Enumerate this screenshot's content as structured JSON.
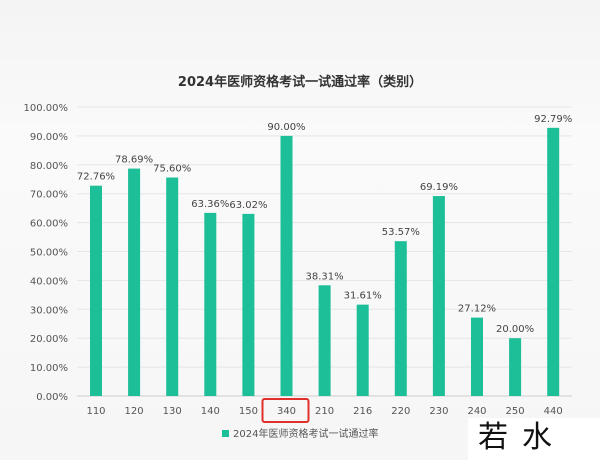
{
  "chart_data": {
    "type": "bar",
    "title": "2024年医师资格考试一试通过率（类别）",
    "categories": [
      "110",
      "120",
      "130",
      "140",
      "150",
      "340",
      "210",
      "216",
      "220",
      "230",
      "240",
      "250",
      "440"
    ],
    "series": [
      {
        "name": "2024年医师资格考试一试通过率",
        "values": [
          72.76,
          78.69,
          75.6,
          63.36,
          63.02,
          90.0,
          38.31,
          31.61,
          53.57,
          69.19,
          27.12,
          20.0,
          92.79
        ]
      }
    ],
    "data_labels": [
      "72.76%",
      "78.69%",
      "75.60%",
      "63.36%",
      "63.02%",
      "90.00%",
      "38.31%",
      "31.61%",
      "53.57%",
      "69.19%",
      "27.12%",
      "20.00%",
      "92.79%"
    ],
    "yticks": [
      "0.00%",
      "10.00%",
      "20.00%",
      "30.00%",
      "40.00%",
      "50.00%",
      "60.00%",
      "70.00%",
      "80.00%",
      "90.00%",
      "100.00%"
    ],
    "ylim": [
      0,
      100
    ],
    "highlighted_category": "340",
    "legend_position": "bottom",
    "grid": true,
    "colors": {
      "bar": "#1dbf98",
      "highlight_box": "#e0302a"
    }
  },
  "watermark": "若水网"
}
